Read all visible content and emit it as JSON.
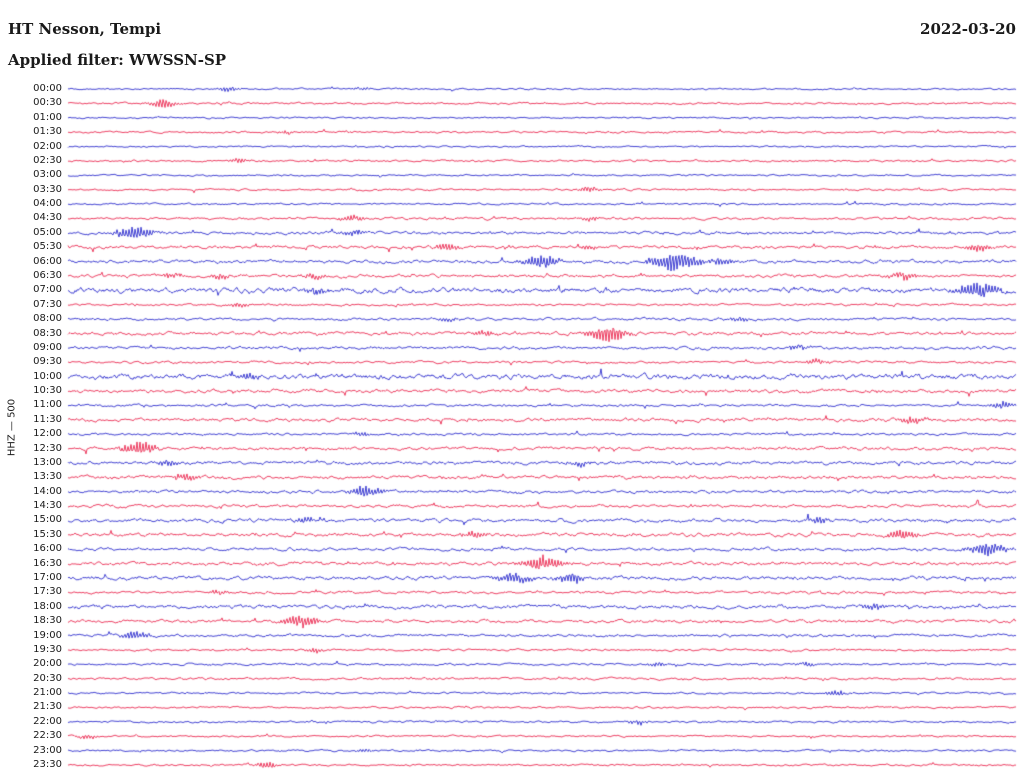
{
  "header": {
    "station": "HT Nesson, Tempi",
    "date": "2022-03-20",
    "filter_label": "Applied filter: WWSSN-SP"
  },
  "axis": {
    "y_label": "HHZ — 500"
  },
  "colors": {
    "blue": "#1414c8",
    "red": "#e8103c",
    "background": "#ffffff",
    "text": "#1a1a1a"
  },
  "chart_data": {
    "type": "line",
    "subtype": "helicorder-seismogram",
    "row_minutes": 30,
    "color_cycle": [
      "blue",
      "red"
    ],
    "rows": [
      {
        "label": "00:00",
        "noise": 0.7,
        "events": [
          [
            0.17,
            2.5
          ],
          [
            0.31,
            1.5
          ]
        ]
      },
      {
        "label": "00:30",
        "noise": 0.8,
        "events": [
          [
            0.1,
            4
          ]
        ]
      },
      {
        "label": "01:00",
        "noise": 0.7,
        "events": []
      },
      {
        "label": "01:30",
        "noise": 0.8,
        "events": [
          [
            0.23,
            1.5
          ]
        ]
      },
      {
        "label": "02:00",
        "noise": 0.7,
        "events": []
      },
      {
        "label": "02:30",
        "noise": 0.9,
        "events": [
          [
            0.18,
            2
          ]
        ]
      },
      {
        "label": "03:00",
        "noise": 0.7,
        "events": []
      },
      {
        "label": "03:30",
        "noise": 0.8,
        "events": [
          [
            0.55,
            2.5
          ]
        ]
      },
      {
        "label": "04:00",
        "noise": 0.8,
        "events": []
      },
      {
        "label": "04:30",
        "noise": 1.0,
        "events": [
          [
            0.3,
            3
          ],
          [
            0.55,
            1.8
          ]
        ]
      },
      {
        "label": "05:00",
        "noise": 1.2,
        "events": [
          [
            0.07,
            6
          ],
          [
            0.3,
            2.2
          ]
        ]
      },
      {
        "label": "05:30",
        "noise": 1.3,
        "events": [
          [
            0.4,
            3.5
          ],
          [
            0.55,
            2
          ],
          [
            0.96,
            3.5
          ]
        ]
      },
      {
        "label": "06:00",
        "noise": 1.4,
        "events": [
          [
            0.5,
            6
          ],
          [
            0.64,
            9
          ],
          [
            0.69,
            3
          ]
        ]
      },
      {
        "label": "06:30",
        "noise": 1.3,
        "events": [
          [
            0.11,
            2.5
          ],
          [
            0.16,
            2.5
          ],
          [
            0.26,
            2.5
          ],
          [
            0.88,
            3.5
          ]
        ]
      },
      {
        "label": "07:00",
        "noise": 2.2,
        "events": [
          [
            0.26,
            3
          ],
          [
            0.96,
            7
          ]
        ]
      },
      {
        "label": "07:30",
        "noise": 0.9,
        "events": [
          [
            0.18,
            2
          ]
        ]
      },
      {
        "label": "08:00",
        "noise": 1.1,
        "events": [
          [
            0.4,
            2
          ],
          [
            0.71,
            2.2
          ]
        ]
      },
      {
        "label": "08:30",
        "noise": 1.4,
        "events": [
          [
            0.44,
            2.5
          ],
          [
            0.57,
            7
          ]
        ]
      },
      {
        "label": "09:00",
        "noise": 1.3,
        "events": [
          [
            0.77,
            2.5
          ]
        ]
      },
      {
        "label": "09:30",
        "noise": 1.0,
        "events": [
          [
            0.79,
            2.5
          ]
        ]
      },
      {
        "label": "10:00",
        "noise": 2.2,
        "events": [
          [
            0.19,
            3
          ]
        ]
      },
      {
        "label": "10:30",
        "noise": 1.5,
        "events": []
      },
      {
        "label": "11:00",
        "noise": 1.0,
        "events": [
          [
            0.985,
            3
          ]
        ]
      },
      {
        "label": "11:30",
        "noise": 1.4,
        "events": [
          [
            0.89,
            3.5
          ]
        ]
      },
      {
        "label": "12:00",
        "noise": 1.0,
        "events": [
          [
            0.31,
            2
          ]
        ]
      },
      {
        "label": "12:30",
        "noise": 1.4,
        "events": [
          [
            0.075,
            6
          ]
        ]
      },
      {
        "label": "13:00",
        "noise": 1.5,
        "events": [
          [
            0.105,
            3
          ],
          [
            0.54,
            2.5
          ]
        ]
      },
      {
        "label": "13:30",
        "noise": 1.4,
        "events": [
          [
            0.125,
            3.5
          ]
        ]
      },
      {
        "label": "14:00",
        "noise": 1.2,
        "events": [
          [
            0.315,
            5
          ]
        ]
      },
      {
        "label": "14:30",
        "noise": 1.2,
        "events": []
      },
      {
        "label": "15:00",
        "noise": 1.5,
        "events": [
          [
            0.25,
            2.5
          ],
          [
            0.79,
            3
          ]
        ]
      },
      {
        "label": "15:30",
        "noise": 1.5,
        "events": [
          [
            0.43,
            3
          ],
          [
            0.88,
            4.5
          ]
        ]
      },
      {
        "label": "16:00",
        "noise": 1.3,
        "events": [
          [
            0.97,
            6
          ]
        ]
      },
      {
        "label": "16:30",
        "noise": 1.4,
        "events": [
          [
            0.5,
            7
          ]
        ]
      },
      {
        "label": "17:00",
        "noise": 1.6,
        "events": [
          [
            0.47,
            5
          ],
          [
            0.53,
            4
          ]
        ]
      },
      {
        "label": "17:30",
        "noise": 1.1,
        "events": [
          [
            0.16,
            2
          ]
        ]
      },
      {
        "label": "18:00",
        "noise": 1.6,
        "events": [
          [
            0.85,
            3
          ]
        ]
      },
      {
        "label": "18:30",
        "noise": 1.3,
        "events": [
          [
            0.245,
            5.5
          ]
        ]
      },
      {
        "label": "19:00",
        "noise": 1.1,
        "events": [
          [
            0.07,
            4
          ]
        ]
      },
      {
        "label": "19:30",
        "noise": 0.9,
        "events": [
          [
            0.26,
            2
          ]
        ]
      },
      {
        "label": "20:00",
        "noise": 0.9,
        "events": [
          [
            0.62,
            2
          ],
          [
            0.78,
            2
          ]
        ]
      },
      {
        "label": "20:30",
        "noise": 1.0,
        "events": []
      },
      {
        "label": "21:00",
        "noise": 0.8,
        "events": [
          [
            0.81,
            2.5
          ]
        ]
      },
      {
        "label": "21:30",
        "noise": 0.8,
        "events": []
      },
      {
        "label": "22:00",
        "noise": 0.9,
        "events": [
          [
            0.6,
            2
          ]
        ]
      },
      {
        "label": "22:30",
        "noise": 0.8,
        "events": [
          [
            0.02,
            2
          ]
        ]
      },
      {
        "label": "23:00",
        "noise": 0.8,
        "events": [
          [
            0.31,
            1.5
          ]
        ]
      },
      {
        "label": "23:30",
        "noise": 0.8,
        "events": [
          [
            0.21,
            3
          ]
        ]
      }
    ]
  }
}
